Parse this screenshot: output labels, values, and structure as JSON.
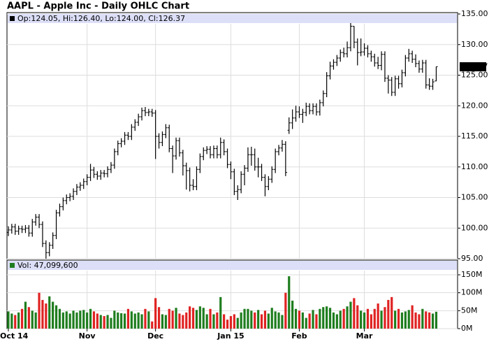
{
  "chart_data": [
    {
      "type": "ohlc",
      "title": "AAPL - Apple Inc - Daily OHLC Chart",
      "legend": "Op:124.05, Hi:126.40, Lo:124.00, Cl:126.37",
      "color": "#000000",
      "ylim": [
        95,
        135
      ],
      "yticks": [
        {
          "value": 95,
          "label": "95.00"
        },
        {
          "value": 100,
          "label": "100.00"
        },
        {
          "value": 105,
          "label": "105.00"
        },
        {
          "value": 110,
          "label": "110.00"
        },
        {
          "value": 115,
          "label": "115.00"
        },
        {
          "value": 120,
          "label": "120.00"
        },
        {
          "value": 125,
          "label": "125.00"
        },
        {
          "value": 130,
          "label": "130.00"
        },
        {
          "value": 135,
          "label": "135.00"
        }
      ],
      "grid": true,
      "series": [
        {
          "open": [
            99.3,
            99.7,
            100.2,
            99.5,
            99.9,
            99.8,
            100.0,
            99.2,
            101.0,
            101.8,
            100.6,
            97.5,
            96.0,
            97.2,
            98.8,
            102.5,
            103.5,
            104.5,
            105.0,
            105.2,
            106.0,
            106.7,
            107.0,
            107.6,
            108.3,
            109.5,
            108.8,
            108.5,
            109.0,
            108.9,
            109.6,
            110.3,
            112.5,
            113.8,
            114.2,
            115.2,
            115.0,
            116.5,
            117.3,
            118.2,
            119.2,
            118.9,
            119.0,
            118.8,
            115.0,
            114.0,
            115.3,
            116.4,
            113.0,
            111.8,
            114.3,
            112.3,
            110.2,
            109.4,
            107.0,
            106.8,
            109.6,
            111.7,
            112.7,
            112.9,
            112.0,
            113.0,
            112.0,
            114.0,
            112.5,
            110.4,
            109.2,
            106.0,
            106.3,
            108.8,
            109.8,
            112.0,
            112.0,
            110.0,
            110.0,
            108.3,
            106.8,
            108.0,
            109.6,
            112.5,
            113.1,
            113.7,
            116.0,
            117.2,
            118.0,
            119.0,
            118.6,
            118.9,
            119.9,
            119.2,
            119.9,
            119.0,
            120.5,
            122.0,
            124.9,
            126.5,
            127.1,
            127.8,
            128.7,
            128.5,
            129.5,
            133.0,
            130.4,
            128.7,
            128.8,
            129.4,
            128.5,
            128.0,
            127.0,
            126.6,
            128.4,
            124.5,
            124.2,
            122.2,
            124.4,
            123.6,
            125.4,
            127.8,
            128.5,
            127.6,
            126.9,
            126.0,
            127.0,
            123.4,
            123.2,
            124.05
          ],
          "high": [
            100.3,
            100.7,
            100.7,
            100.4,
            100.4,
            100.5,
            100.5,
            101.5,
            102.3,
            102.3,
            101.1,
            98.0,
            97.7,
            99.3,
            103.0,
            104.0,
            105.0,
            105.5,
            105.7,
            106.5,
            107.2,
            107.5,
            108.1,
            108.8,
            110.5,
            110.0,
            109.3,
            109.5,
            109.5,
            110.1,
            110.8,
            113.0,
            114.3,
            114.7,
            115.7,
            115.7,
            117.0,
            117.8,
            118.7,
            119.7,
            119.8,
            119.5,
            119.5,
            119.3,
            115.5,
            115.8,
            117.0,
            116.9,
            113.5,
            114.8,
            114.8,
            112.8,
            110.7,
            109.9,
            108.0,
            110.1,
            112.2,
            113.2,
            113.4,
            113.4,
            113.5,
            113.5,
            114.8,
            114.5,
            113.0,
            110.9,
            109.7,
            107.0,
            109.3,
            110.3,
            113.2,
            113.3,
            113.0,
            111.5,
            110.5,
            108.8,
            108.5,
            110.1,
            113.0,
            113.6,
            114.4,
            114.2,
            118.1,
            119.4,
            120.0,
            119.9,
            119.5,
            120.5,
            120.4,
            120.4,
            120.4,
            121.0,
            122.5,
            125.5,
            127.2,
            127.6,
            128.3,
            129.2,
            129.5,
            130.5,
            133.6,
            133.0,
            131.0,
            131.0,
            130.2,
            129.9,
            129.0,
            128.5,
            128.0,
            128.9,
            128.9,
            125.0,
            124.7,
            124.9,
            124.9,
            125.9,
            128.3,
            129.3,
            129.0,
            128.4,
            127.4,
            127.5,
            127.5,
            124.5,
            124.4,
            126.4
          ],
          "low": [
            98.7,
            99.1,
            98.9,
            98.9,
            99.2,
            99.2,
            98.6,
            98.6,
            100.4,
            100.0,
            96.9,
            95.0,
            95.4,
            96.6,
            98.2,
            101.9,
            102.9,
            103.9,
            104.4,
            104.6,
            105.4,
            106.1,
            106.4,
            107.0,
            107.7,
            108.2,
            107.9,
            107.9,
            108.3,
            108.3,
            109.0,
            109.7,
            111.9,
            113.2,
            113.6,
            114.4,
            114.4,
            115.9,
            116.7,
            117.6,
            118.3,
            118.3,
            118.2,
            111.3,
            113.0,
            113.4,
            114.7,
            112.4,
            109.0,
            111.2,
            111.7,
            108.6,
            106.3,
            106.0,
            106.2,
            106.2,
            109.0,
            111.1,
            112.1,
            111.4,
            111.4,
            111.4,
            111.4,
            111.9,
            109.8,
            108.0,
            105.4,
            104.6,
            105.7,
            107.0,
            109.2,
            110.2,
            109.4,
            108.3,
            107.7,
            105.2,
            106.2,
            107.4,
            109.0,
            111.9,
            112.5,
            108.5,
            115.4,
            116.2,
            117.4,
            118.0,
            117.2,
            118.3,
            118.6,
            118.6,
            118.4,
            118.4,
            119.9,
            121.4,
            124.3,
            125.9,
            126.5,
            127.2,
            127.9,
            127.9,
            128.9,
            129.4,
            126.6,
            128.1,
            128.2,
            127.9,
            127.2,
            126.4,
            126.0,
            125.8,
            123.9,
            122.0,
            121.6,
            121.6,
            122.8,
            123.0,
            124.8,
            127.2,
            127.0,
            126.3,
            125.4,
            125.4,
            122.8,
            122.6,
            122.6,
            124.0
          ],
          "close": [
            99.7,
            100.2,
            99.5,
            99.9,
            99.8,
            100.0,
            99.2,
            101.0,
            101.8,
            100.6,
            97.5,
            96.0,
            97.2,
            98.8,
            102.5,
            103.5,
            104.5,
            105.0,
            105.2,
            106.0,
            106.7,
            107.0,
            107.6,
            108.3,
            109.5,
            108.8,
            108.5,
            109.0,
            108.9,
            109.6,
            110.3,
            112.5,
            113.8,
            114.2,
            115.2,
            115.0,
            116.5,
            117.3,
            118.2,
            119.2,
            118.9,
            119.0,
            118.8,
            115.0,
            114.0,
            115.3,
            116.4,
            113.0,
            111.8,
            114.3,
            112.3,
            110.2,
            109.4,
            107.0,
            106.8,
            109.6,
            111.7,
            112.7,
            112.9,
            112.0,
            113.0,
            112.0,
            114.0,
            112.5,
            110.4,
            109.2,
            106.0,
            106.3,
            108.8,
            109.8,
            112.0,
            112.0,
            110.0,
            110.0,
            108.3,
            106.8,
            108.0,
            109.6,
            112.5,
            113.1,
            113.7,
            109.1,
            117.2,
            118.0,
            119.0,
            118.6,
            118.9,
            119.9,
            119.2,
            119.9,
            119.0,
            120.5,
            122.0,
            124.9,
            126.5,
            127.1,
            127.8,
            128.7,
            128.5,
            129.5,
            133.0,
            130.4,
            128.7,
            128.8,
            129.4,
            128.5,
            128.0,
            127.0,
            126.6,
            128.4,
            124.5,
            124.2,
            122.2,
            124.4,
            123.6,
            125.4,
            127.8,
            128.5,
            127.6,
            126.9,
            126.0,
            127.0,
            123.4,
            123.2,
            123.9,
            126.37
          ]
        }
      ]
    },
    {
      "type": "bar",
      "legend": "Vol: 47,099,600",
      "up_color": "#1e7d1e",
      "down_color": "#e02222",
      "ylim": [
        0,
        190
      ],
      "yticks": [
        {
          "value": 0,
          "label": "0M"
        },
        {
          "value": 50,
          "label": "50M"
        },
        {
          "value": 100,
          "label": "100M"
        },
        {
          "value": 150,
          "label": "150M"
        }
      ],
      "grid": true,
      "categories": [
        "Oct 14",
        null,
        null,
        null,
        null,
        null,
        null,
        null,
        null,
        null,
        null,
        null,
        null,
        null,
        null,
        null,
        null,
        null,
        null,
        null,
        null,
        null,
        null,
        "Nov",
        null,
        null,
        null,
        null,
        null,
        null,
        null,
        null,
        null,
        null,
        null,
        null,
        null,
        null,
        null,
        null,
        null,
        null,
        null,
        "Dec",
        null,
        null,
        null,
        null,
        null,
        null,
        null,
        null,
        null,
        null,
        null,
        null,
        null,
        null,
        null,
        null,
        null,
        null,
        null,
        null,
        null,
        "Jan 15",
        null,
        null,
        null,
        null,
        null,
        null,
        null,
        null,
        null,
        null,
        null,
        null,
        null,
        null,
        null,
        null,
        null,
        null,
        null,
        "Feb",
        null,
        null,
        null,
        null,
        null,
        null,
        null,
        null,
        null,
        null,
        null,
        null,
        null,
        null,
        null,
        null,
        null,
        null,
        "Mar",
        null,
        null,
        null,
        null,
        null,
        null,
        null,
        null,
        null,
        null,
        null,
        null,
        null,
        null,
        null,
        null,
        null,
        null,
        null,
        null,
        null
      ],
      "values": [
        48,
        42,
        38,
        45,
        55,
        75,
        60,
        50,
        45,
        100,
        80,
        70,
        90,
        75,
        65,
        55,
        45,
        48,
        42,
        50,
        45,
        50,
        52,
        45,
        55,
        48,
        42,
        38,
        35,
        38,
        30,
        50,
        45,
        43,
        42,
        55,
        48,
        42,
        45,
        40,
        55,
        48,
        20,
        85,
        60,
        40,
        38,
        55,
        50,
        58,
        42,
        38,
        45,
        62,
        58,
        52,
        62,
        58,
        40,
        55,
        40,
        45,
        88,
        40,
        25,
        35,
        40,
        30,
        45,
        55,
        55,
        50,
        45,
        52,
        40,
        50,
        42,
        58,
        48,
        45,
        38,
        100,
        146,
        78,
        55,
        50,
        45,
        30,
        42,
        52,
        40,
        55,
        60,
        62,
        58,
        45,
        40,
        50,
        55,
        62,
        75,
        85,
        65,
        50,
        45,
        55,
        40,
        55,
        70,
        50,
        60,
        80,
        88,
        50,
        55,
        45,
        48,
        52,
        65,
        45,
        40,
        55,
        48,
        45,
        42,
        47.0996
      ]
    }
  ]
}
